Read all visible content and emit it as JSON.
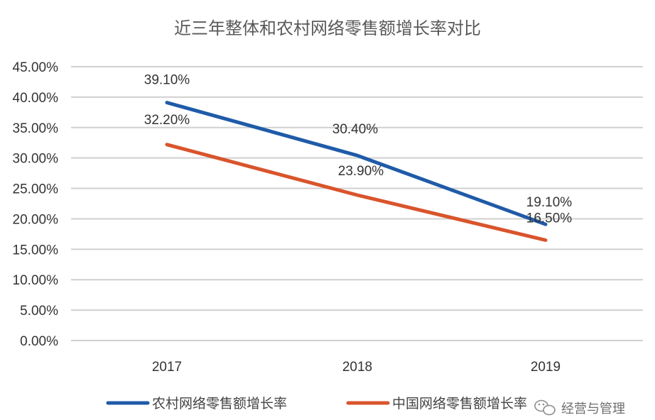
{
  "chart_data": {
    "type": "line",
    "title": "近三年整体和农村网络零售额增长率对比",
    "categories": [
      "2017",
      "2018",
      "2019"
    ],
    "ylim": [
      0,
      45
    ],
    "y_ticks": [
      "0.00%",
      "5.00%",
      "10.00%",
      "15.00%",
      "20.00%",
      "25.00%",
      "30.00%",
      "35.00%",
      "40.00%",
      "45.00%"
    ],
    "grid": true,
    "legend_position": "bottom",
    "series": [
      {
        "name": "农村网络零售额增长率",
        "color": "#1f5ba8",
        "values": [
          39.1,
          30.4,
          19.1
        ],
        "labels": [
          "39.10%",
          "30.40%",
          "19.10%"
        ]
      },
      {
        "name": "中国网络零售额增长率",
        "color": "#d9542c",
        "values": [
          32.2,
          23.9,
          16.5
        ],
        "labels": [
          "32.20%",
          "23.90%",
          "16.50%"
        ]
      }
    ]
  },
  "watermark": {
    "icon": "wechat-icon",
    "text": "经营与管理"
  }
}
